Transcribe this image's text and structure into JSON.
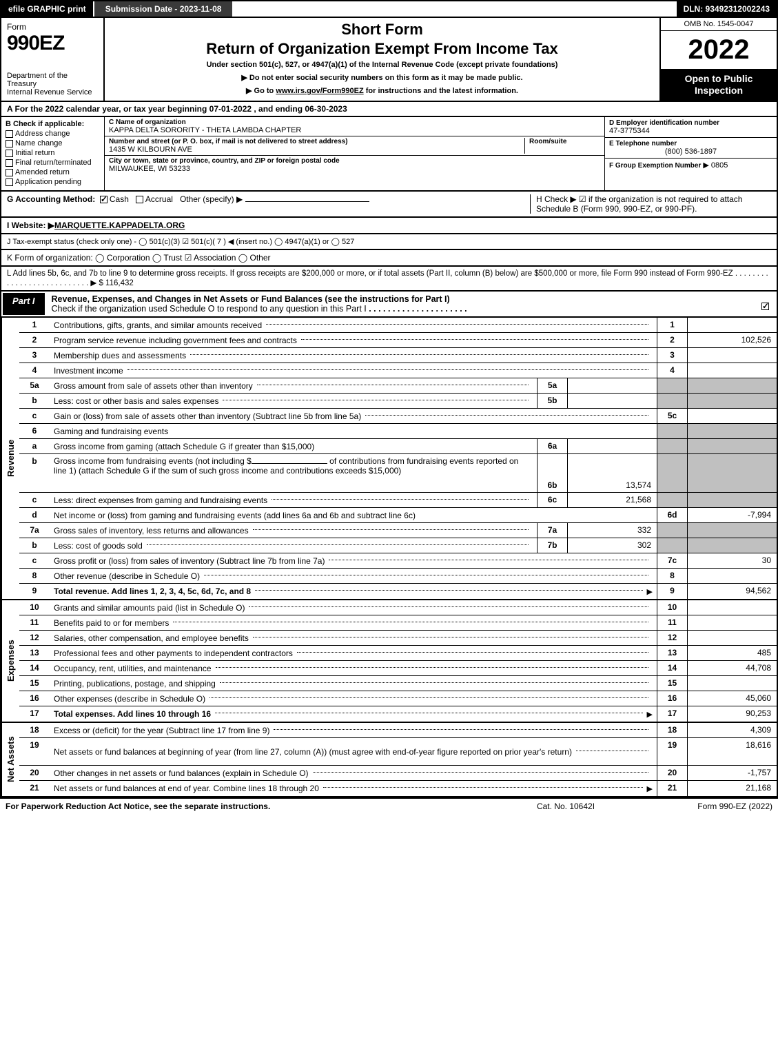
{
  "topbar": {
    "efile": "efile GRAPHIC print",
    "submission": "Submission Date - 2023-11-08",
    "dln": "DLN: 93492312002243"
  },
  "header": {
    "form_word": "Form",
    "form_num": "990EZ",
    "dept": "Department of the Treasury\nInternal Revenue Service",
    "short_form": "Short Form",
    "title": "Return of Organization Exempt From Income Tax",
    "sub": "Under section 501(c), 527, or 4947(a)(1) of the Internal Revenue Code (except private foundations)",
    "note1": "▶ Do not enter social security numbers on this form as it may be made public.",
    "note2_pre": "▶ Go to ",
    "note2_link": "www.irs.gov/Form990EZ",
    "note2_post": " for instructions and the latest information.",
    "omb": "OMB No. 1545-0047",
    "year": "2022",
    "open": "Open to Public Inspection"
  },
  "lineA": "A  For the 2022 calendar year, or tax year beginning 07-01-2022 , and ending 06-30-2023",
  "B": {
    "label": "B  Check if applicable:",
    "opts": [
      "Address change",
      "Name change",
      "Initial return",
      "Final return/terminated",
      "Amended return",
      "Application pending"
    ]
  },
  "C": {
    "name_label": "C Name of organization",
    "name": "KAPPA DELTA SORORITY - THETA LAMBDA CHAPTER",
    "street_label": "Number and street (or P. O. box, if mail is not delivered to street address)",
    "room_label": "Room/suite",
    "street": "1435 W KILBOURN AVE",
    "city_label": "City or town, state or province, country, and ZIP or foreign postal code",
    "city": "MILWAUKEE, WI  53233"
  },
  "DEF": {
    "d_label": "D Employer identification number",
    "d_val": "47-3775344",
    "e_label": "E Telephone number",
    "e_val": "(800) 536-1897",
    "f_label": "F Group Exemption Number",
    "f_val": "▶ 0805"
  },
  "G": {
    "label": "G Accounting Method:",
    "cash": "Cash",
    "accrual": "Accrual",
    "other": "Other (specify) ▶"
  },
  "H": {
    "text": "H  Check ▶ ☑ if the organization is not required to attach Schedule B (Form 990, 990-EZ, or 990-PF)."
  },
  "I": {
    "label": "I Website: ▶",
    "val": "MARQUETTE.KAPPADELTA.ORG"
  },
  "J": "J Tax-exempt status (check only one) - ◯ 501(c)(3)  ☑ 501(c)( 7 ) ◀ (insert no.)  ◯ 4947(a)(1) or  ◯ 527",
  "K": "K Form of organization:   ◯ Corporation   ◯ Trust   ☑ Association   ◯ Other",
  "L": {
    "text": "L Add lines 5b, 6c, and 7b to line 9 to determine gross receipts. If gross receipts are $200,000 or more, or if total assets (Part II, column (B) below) are $500,000 or more, file Form 990 instead of Form 990-EZ",
    "val": "▶ $ 116,432"
  },
  "part1": {
    "tab": "Part I",
    "title": "Revenue, Expenses, and Changes in Net Assets or Fund Balances (see the instructions for Part I)",
    "check_line": "Check if the organization used Schedule O to respond to any question in this Part I"
  },
  "revenue": {
    "side": "Revenue",
    "rows": [
      {
        "n": "1",
        "d": "Contributions, gifts, grants, and similar amounts received",
        "ln": "1",
        "v": ""
      },
      {
        "n": "2",
        "d": "Program service revenue including government fees and contracts",
        "ln": "2",
        "v": "102,526"
      },
      {
        "n": "3",
        "d": "Membership dues and assessments",
        "ln": "3",
        "v": ""
      },
      {
        "n": "4",
        "d": "Investment income",
        "ln": "4",
        "v": ""
      }
    ],
    "r5a": {
      "n": "5a",
      "d": "Gross amount from sale of assets other than inventory",
      "sn": "5a",
      "sv": ""
    },
    "r5b": {
      "n": "b",
      "d": "Less: cost or other basis and sales expenses",
      "sn": "5b",
      "sv": ""
    },
    "r5c": {
      "n": "c",
      "d": "Gain or (loss) from sale of assets other than inventory (Subtract line 5b from line 5a)",
      "ln": "5c",
      "v": ""
    },
    "r6": {
      "n": "6",
      "d": "Gaming and fundraising events"
    },
    "r6a": {
      "n": "a",
      "d": "Gross income from gaming (attach Schedule G if greater than $15,000)",
      "sn": "6a",
      "sv": ""
    },
    "r6b": {
      "n": "b",
      "d1": "Gross income from fundraising events (not including $",
      "d2": " of contributions from fundraising events reported on line 1) (attach Schedule G if the sum of such gross income and contributions exceeds $15,000)",
      "sn": "6b",
      "sv": "13,574"
    },
    "r6c": {
      "n": "c",
      "d": "Less: direct expenses from gaming and fundraising events",
      "sn": "6c",
      "sv": "21,568"
    },
    "r6d": {
      "n": "d",
      "d": "Net income or (loss) from gaming and fundraising events (add lines 6a and 6b and subtract line 6c)",
      "ln": "6d",
      "v": "-7,994"
    },
    "r7a": {
      "n": "7a",
      "d": "Gross sales of inventory, less returns and allowances",
      "sn": "7a",
      "sv": "332"
    },
    "r7b": {
      "n": "b",
      "d": "Less: cost of goods sold",
      "sn": "7b",
      "sv": "302"
    },
    "r7c": {
      "n": "c",
      "d": "Gross profit or (loss) from sales of inventory (Subtract line 7b from line 7a)",
      "ln": "7c",
      "v": "30"
    },
    "r8": {
      "n": "8",
      "d": "Other revenue (describe in Schedule O)",
      "ln": "8",
      "v": ""
    },
    "r9": {
      "n": "9",
      "d": "Total revenue. Add lines 1, 2, 3, 4, 5c, 6d, 7c, and 8",
      "ln": "9",
      "v": "94,562",
      "arrow": "▶"
    }
  },
  "expenses": {
    "side": "Expenses",
    "rows": [
      {
        "n": "10",
        "d": "Grants and similar amounts paid (list in Schedule O)",
        "ln": "10",
        "v": ""
      },
      {
        "n": "11",
        "d": "Benefits paid to or for members",
        "ln": "11",
        "v": ""
      },
      {
        "n": "12",
        "d": "Salaries, other compensation, and employee benefits",
        "ln": "12",
        "v": ""
      },
      {
        "n": "13",
        "d": "Professional fees and other payments to independent contractors",
        "ln": "13",
        "v": "485"
      },
      {
        "n": "14",
        "d": "Occupancy, rent, utilities, and maintenance",
        "ln": "14",
        "v": "44,708"
      },
      {
        "n": "15",
        "d": "Printing, publications, postage, and shipping",
        "ln": "15",
        "v": ""
      },
      {
        "n": "16",
        "d": "Other expenses (describe in Schedule O)",
        "ln": "16",
        "v": "45,060"
      },
      {
        "n": "17",
        "d": "Total expenses. Add lines 10 through 16",
        "ln": "17",
        "v": "90,253",
        "arrow": "▶"
      }
    ]
  },
  "netassets": {
    "side": "Net Assets",
    "rows": [
      {
        "n": "18",
        "d": "Excess or (deficit) for the year (Subtract line 17 from line 9)",
        "ln": "18",
        "v": "4,309"
      },
      {
        "n": "19",
        "d": "Net assets or fund balances at beginning of year (from line 27, column (A)) (must agree with end-of-year figure reported on prior year's return)",
        "ln": "19",
        "v": "18,616"
      },
      {
        "n": "20",
        "d": "Other changes in net assets or fund balances (explain in Schedule O)",
        "ln": "20",
        "v": "-1,757"
      },
      {
        "n": "21",
        "d": "Net assets or fund balances at end of year. Combine lines 18 through 20",
        "ln": "21",
        "v": "21,168",
        "arrow": "▶"
      }
    ]
  },
  "footer": {
    "left": "For Paperwork Reduction Act Notice, see the separate instructions.",
    "mid": "Cat. No. 10642I",
    "right": "Form 990-EZ (2022)"
  }
}
